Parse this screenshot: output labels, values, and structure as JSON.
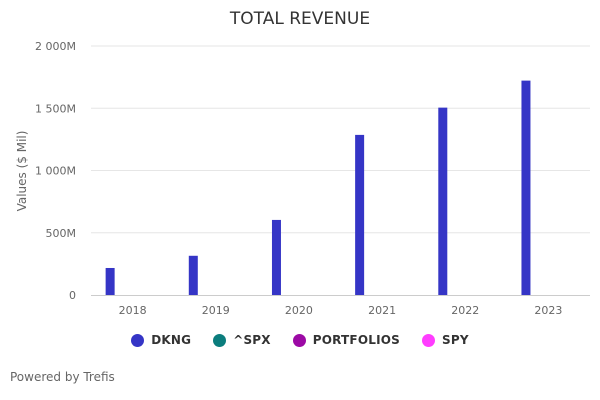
{
  "chart_data": {
    "type": "bar",
    "title": "TOTAL REVENUE",
    "xlabel": "",
    "ylabel": "Values ($ Mil)",
    "ylim": [
      0,
      2000
    ],
    "yticks": [
      0,
      500,
      1000,
      1500,
      2000
    ],
    "ytick_labels": [
      "0",
      "500M",
      "1 000M",
      "1 500M",
      "2 000M"
    ],
    "categories": [
      "2018",
      "2019",
      "2020",
      "2021",
      "2022",
      "2023"
    ],
    "series": [
      {
        "name": "DKNG",
        "color": "#3535c6",
        "values": [
          217,
          315,
          603,
          1286,
          1505,
          1722
        ]
      },
      {
        "name": "^SPX",
        "color": "#0b7d7d",
        "values": [
          null,
          null,
          null,
          null,
          null,
          null
        ]
      },
      {
        "name": "PORTFOLIOS",
        "color": "#9c0aa5",
        "values": [
          null,
          null,
          null,
          null,
          null,
          null
        ]
      },
      {
        "name": "SPY",
        "color": "#ff3dff",
        "values": [
          null,
          null,
          null,
          null,
          null,
          null
        ]
      }
    ],
    "grid": true,
    "legend_position": "bottom"
  },
  "footer": {
    "text": "Powered by Trefis"
  }
}
